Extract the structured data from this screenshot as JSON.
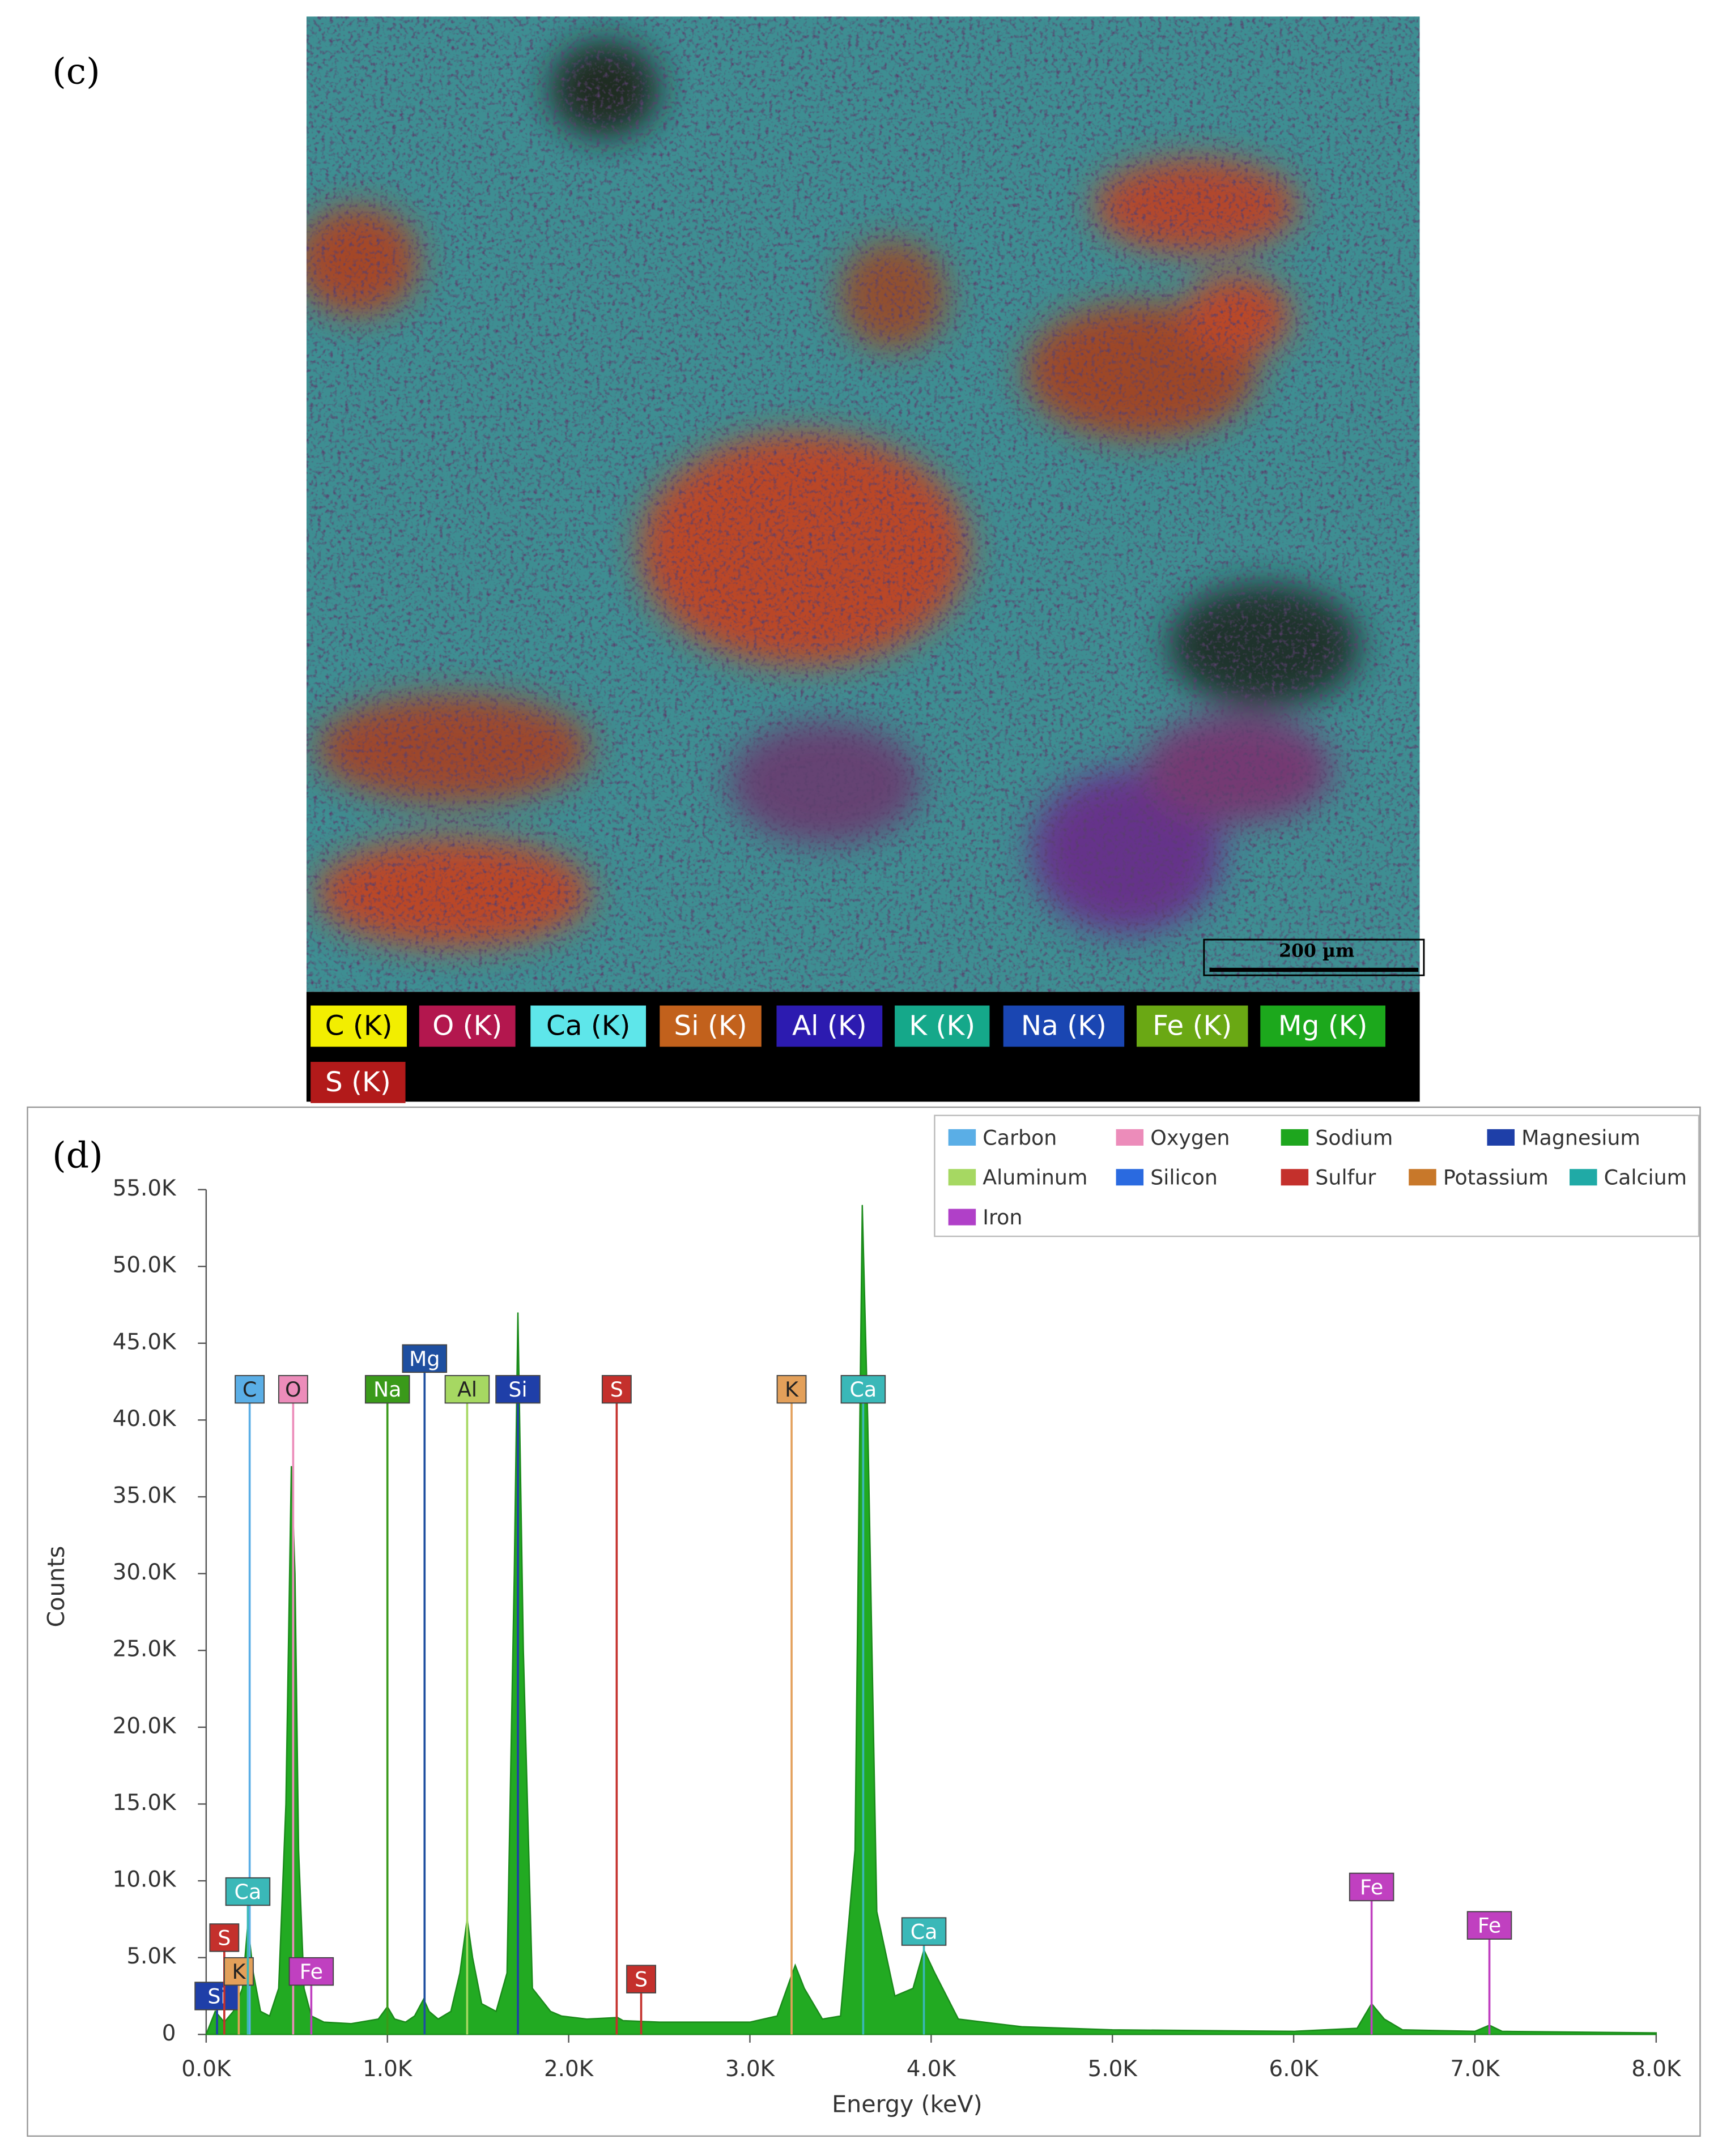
{
  "panel_c": {
    "label": "(c)",
    "scale_bar": "200 µm",
    "map_legend": [
      {
        "name": "C (K)",
        "color": "#f2ee00"
      },
      {
        "name": "O (K)",
        "color": "#b3174e"
      },
      {
        "name": "Ca (K)",
        "color": "#5ee6ea"
      },
      {
        "name": "Si (K)",
        "color": "#c2611c"
      },
      {
        "name": "Al (K)",
        "color": "#2c1bb0"
      },
      {
        "name": "K (K)",
        "color": "#15a88a"
      },
      {
        "name": "Na (K)",
        "color": "#1a46b2"
      },
      {
        "name": "Fe (K)",
        "color": "#6aa814"
      },
      {
        "name": "Mg (K)",
        "color": "#1ca81c"
      },
      {
        "name": "S (K)",
        "color": "#b21a1a"
      }
    ]
  },
  "chart_data": {
    "type": "area",
    "panel_label": "(d)",
    "x_label": "Energy (keV)",
    "y_label": "Counts",
    "color": "#22aa22",
    "x": [
      0,
      50,
      100,
      150,
      200,
      230,
      260,
      300,
      350,
      400,
      440,
      470,
      490,
      510,
      540,
      580,
      650,
      800,
      950,
      1000,
      1040,
      1100,
      1150,
      1200,
      1230,
      1280,
      1350,
      1400,
      1440,
      1470,
      1520,
      1600,
      1660,
      1700,
      1720,
      1750,
      1800,
      1900,
      1960,
      2100,
      2270,
      2300,
      2500,
      3000,
      3150,
      3250,
      3300,
      3400,
      3500,
      3580,
      3620,
      3650,
      3700,
      3800,
      3900,
      3960,
      4020,
      4150,
      4500,
      5000,
      6000,
      6350,
      6430,
      6500,
      6600,
      7000,
      7080,
      7150,
      8000
    ],
    "values": [
      0,
      1500,
      800,
      1500,
      3000,
      7200,
      4000,
      1500,
      1200,
      3000,
      15000,
      37000,
      30000,
      12000,
      3000,
      1200,
      800,
      700,
      1000,
      1800,
      1000,
      800,
      1200,
      2300,
      1500,
      1000,
      1500,
      4000,
      7500,
      5000,
      2000,
      1500,
      4000,
      30000,
      47000,
      25000,
      3000,
      1500,
      1200,
      1000,
      1100,
      900,
      800,
      800,
      1200,
      4500,
      3000,
      1000,
      1200,
      12000,
      54000,
      40000,
      8000,
      2500,
      3000,
      5500,
      4000,
      1000,
      500,
      300,
      200,
      400,
      2000,
      1000,
      300,
      200,
      600,
      200,
      100
    ],
    "xlim": [
      0,
      8000
    ],
    "ylim": [
      0,
      55000
    ],
    "xticks": [
      {
        "value": 0,
        "label": "0.0K"
      },
      {
        "value": 1000,
        "label": "1.0K"
      },
      {
        "value": 2000,
        "label": "2.0K"
      },
      {
        "value": 3000,
        "label": "3.0K"
      },
      {
        "value": 4000,
        "label": "4.0K"
      },
      {
        "value": 5000,
        "label": "5.0K"
      },
      {
        "value": 6000,
        "label": "6.0K"
      },
      {
        "value": 7000,
        "label": "7.0K"
      },
      {
        "value": 8000,
        "label": "8.0K"
      }
    ],
    "yticks": [
      0,
      {
        "value": 5000,
        "label": "5.0K"
      },
      {
        "value": 10000,
        "label": "10.0K"
      },
      {
        "value": 15000,
        "label": "15.0K"
      },
      {
        "value": 20000,
        "label": "20.0K"
      },
      {
        "value": 25000,
        "label": "25.0K"
      },
      {
        "value": 30000,
        "label": "30.0K"
      },
      {
        "value": 35000,
        "label": "35.0K"
      },
      {
        "value": 40000,
        "label": "40.0K"
      },
      {
        "value": 45000,
        "label": "45.0K"
      },
      {
        "value": 50000,
        "label": "50.0K"
      },
      {
        "value": 55000,
        "label": "55.0K"
      }
    ],
    "legend": [
      {
        "name": "Carbon",
        "color": "#5aaee6"
      },
      {
        "name": "Oxygen",
        "color": "#ec8cba"
      },
      {
        "name": "Sodium",
        "color": "#1ea61e"
      },
      {
        "name": "Magnesium",
        "color": "#1e3fa8"
      },
      {
        "name": "Aluminum",
        "color": "#a6d862"
      },
      {
        "name": "Silicon",
        "color": "#2a6ae0"
      },
      {
        "name": "Sulfur",
        "color": "#c4302c"
      },
      {
        "name": "Potassium",
        "color": "#c8782a"
      },
      {
        "name": "Calcium",
        "color": "#20aaa6"
      },
      {
        "name": "Iron",
        "color": "#b040c8"
      }
    ],
    "markers": [
      {
        "label": "C",
        "x": 240,
        "top": 42000,
        "color": "#5aaee6"
      },
      {
        "label": "O",
        "x": 480,
        "top": 42000,
        "color": "#ec8cba"
      },
      {
        "label": "Na",
        "x": 1000,
        "top": 42000,
        "color": "#3a9a1a"
      },
      {
        "label": "Mg",
        "x": 1205,
        "top": 44000,
        "color": "#1e4fa0"
      },
      {
        "label": "Al",
        "x": 1440,
        "top": 42000,
        "color": "#a6d862"
      },
      {
        "label": "Si",
        "x": 1720,
        "top": 42000,
        "color": "#1f3fa8"
      },
      {
        "label": "S",
        "x": 2265,
        "top": 42000,
        "color": "#c4302c"
      },
      {
        "label": "K",
        "x": 3230,
        "top": 42000,
        "color": "#e3a05a"
      },
      {
        "label": "Ca",
        "x": 3625,
        "top": 42000,
        "color": "#3ab8b8"
      },
      {
        "label": "Si",
        "x": 60,
        "top": 2500,
        "color": "#1f3fa8"
      },
      {
        "label": "S",
        "x": 100,
        "top": 6300,
        "color": "#c4302c"
      },
      {
        "label": "K",
        "x": 180,
        "top": 4100,
        "color": "#e3a05a"
      },
      {
        "label": "Ca",
        "x": 230,
        "top": 9300,
        "color": "#3ab8b8"
      },
      {
        "label": "Fe",
        "x": 580,
        "top": 4100,
        "color": "#c040c0"
      },
      {
        "label": "S",
        "x": 2400,
        "top": 3600,
        "color": "#c4302c"
      },
      {
        "label": "Ca",
        "x": 3960,
        "top": 6700,
        "color": "#3ab8b8"
      },
      {
        "label": "Fe",
        "x": 6430,
        "top": 9600,
        "color": "#c040c0"
      },
      {
        "label": "Fe",
        "x": 7080,
        "top": 7100,
        "color": "#c040c0"
      }
    ]
  }
}
